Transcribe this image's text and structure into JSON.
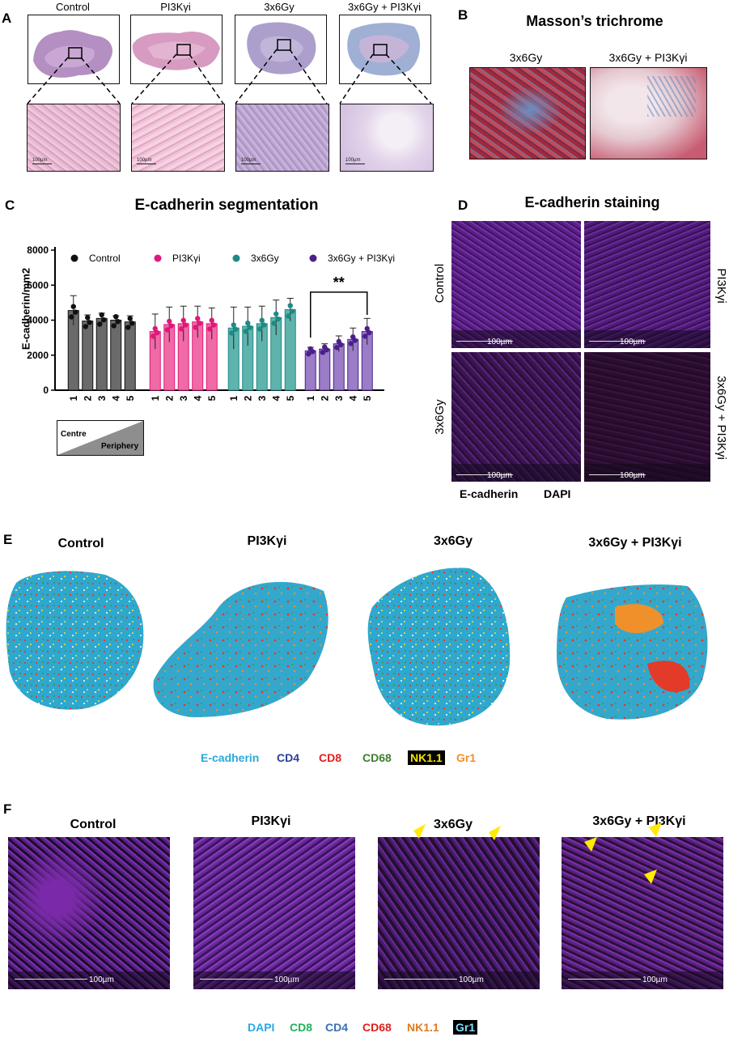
{
  "panelA": {
    "label": "A",
    "groups": [
      "Control",
      "PI3Kγi",
      "3x6Gy",
      "3x6Gy + PI3Kγi"
    ],
    "scalebar": "100µm"
  },
  "panelB": {
    "label": "B",
    "title": "Masson’s trichrome",
    "groups": [
      "3x6Gy",
      "3x6Gy + PI3Kγi"
    ]
  },
  "panelC": {
    "label": "C",
    "gradient_labels": {
      "centre": "Centre",
      "periphery": "Periphery"
    },
    "significance": "**"
  },
  "chart_data": {
    "type": "bar",
    "title": "E-cadherin segmentation",
    "ylabel": "E-cadherin/mm2",
    "xlabel": "",
    "ylim": [
      0,
      8000
    ],
    "yticks": [
      "0",
      "2000",
      "4000",
      "6000",
      "8000"
    ],
    "categories": [
      "1",
      "2",
      "3",
      "4",
      "5"
    ],
    "series": [
      {
        "name": "Control",
        "color": "#6a6a6a",
        "dot": "#111111",
        "values": [
          4550,
          3950,
          4100,
          4000,
          3900
        ],
        "errors": [
          850,
          350,
          300,
          250,
          350
        ]
      },
      {
        "name": "PI3Kγi",
        "color": "#f06aa6",
        "dot": "#e0187a",
        "values": [
          3350,
          3750,
          3800,
          3900,
          3800
        ],
        "errors": [
          1000,
          1000,
          1000,
          900,
          900
        ]
      },
      {
        "name": "3x6Gy",
        "color": "#5fb3ad",
        "dot": "#1f8a84",
        "values": [
          3550,
          3650,
          3800,
          4150,
          4600
        ],
        "errors": [
          1200,
          1100,
          1000,
          1000,
          650
        ]
      },
      {
        "name": "3x6Gy + PI3Kγi",
        "color": "#9b7cc7",
        "dot": "#4b1f8c",
        "values": [
          2250,
          2350,
          2650,
          2900,
          3350
        ],
        "errors": [
          200,
          300,
          450,
          650,
          750
        ]
      }
    ]
  },
  "panelD": {
    "label": "D",
    "title": "E-cadherin staining",
    "row_labels_left": [
      "Control",
      "3x6Gy"
    ],
    "row_labels_right": [
      "PI3Kγi",
      "3x6Gy + PI3Kγi"
    ],
    "scalebar": "100µm",
    "legend": [
      {
        "text": "E-cadherin",
        "color": "#8a3fb0"
      },
      {
        "text": "DAPI",
        "color": "#3f7fc0"
      }
    ]
  },
  "panelE": {
    "label": "E",
    "groups": [
      "Control",
      "PI3Kγi",
      "3x6Gy",
      "3x6Gy + PI3Kγi"
    ],
    "legend": [
      {
        "text": "E-cadherin",
        "color": "#2aa8d8"
      },
      {
        "text": "CD4",
        "color": "#2b3f9c"
      },
      {
        "text": "CD8",
        "color": "#e02020"
      },
      {
        "text": "CD68",
        "color": "#3f7f2f"
      },
      {
        "text": "NK1.1",
        "color": "#f5e300"
      },
      {
        "text": "Gr1",
        "color": "#f0902a"
      }
    ]
  },
  "panelF": {
    "label": "F",
    "groups": [
      "Control",
      "PI3Kγi",
      "3x6Gy",
      "3x6Gy + PI3Kγi"
    ],
    "scalebar": "100µm",
    "legend": [
      {
        "text": "DAPI",
        "color": "#27a9e1"
      },
      {
        "text": "CD8",
        "color": "#1fb25a"
      },
      {
        "text": "CD4",
        "color": "#3a6fb5"
      },
      {
        "text": "CD68",
        "color": "#e02020"
      },
      {
        "text": "NK1.1",
        "color": "#e07a1f"
      },
      {
        "text": "Gr1",
        "color": "#7fe0ff"
      }
    ]
  }
}
